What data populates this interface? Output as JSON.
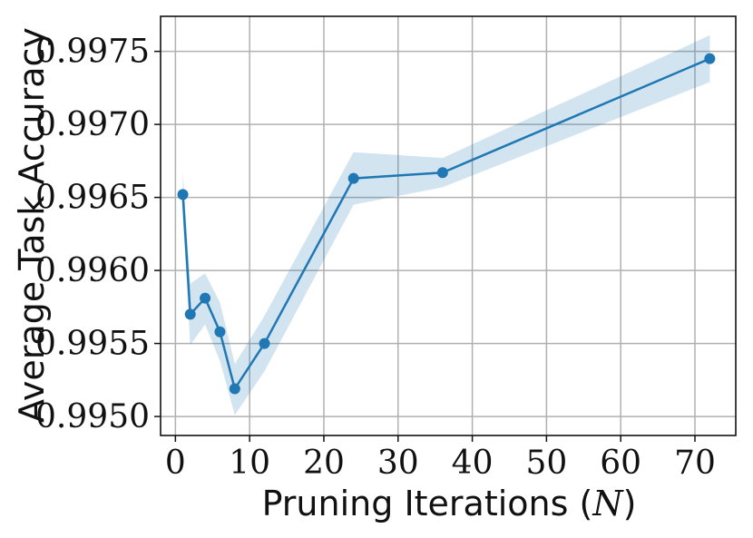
{
  "chart_data": {
    "type": "line",
    "title": "",
    "xlabel": "Pruning Iterations (",
    "xlabel_var": "N",
    "xlabel_close": ")",
    "ylabel": "Average Task Accuracy",
    "xlim": [
      -2,
      75.5
    ],
    "ylim": [
      0.99487,
      0.99774
    ],
    "xticks": [
      0,
      10,
      20,
      30,
      40,
      50,
      60,
      70
    ],
    "xtick_labels": [
      "0",
      "10",
      "20",
      "30",
      "40",
      "50",
      "60",
      "70"
    ],
    "yticks": [
      0.995,
      0.9955,
      0.996,
      0.9965,
      0.997,
      0.9975
    ],
    "ytick_labels": [
      "0.9950",
      "0.9955",
      "0.9960",
      "0.9965",
      "0.9970",
      "0.9975"
    ],
    "grid": true,
    "series": [
      {
        "x": [
          1,
          2,
          4,
          6,
          8,
          12,
          24,
          36,
          72
        ],
        "y": [
          0.99652,
          0.9957,
          0.99581,
          0.99558,
          0.99519,
          0.9955,
          0.99663,
          0.99667,
          0.99745
        ],
        "y_lower": [
          0.99637,
          0.99549,
          0.99563,
          0.99538,
          0.99501,
          0.99531,
          0.99645,
          0.99657,
          0.99729
        ],
        "y_upper": [
          0.99668,
          0.99591,
          0.99598,
          0.99578,
          0.99536,
          0.99569,
          0.99681,
          0.99677,
          0.99761
        ],
        "color": "#1f77b4",
        "band_color": "#1f77b4"
      }
    ]
  }
}
